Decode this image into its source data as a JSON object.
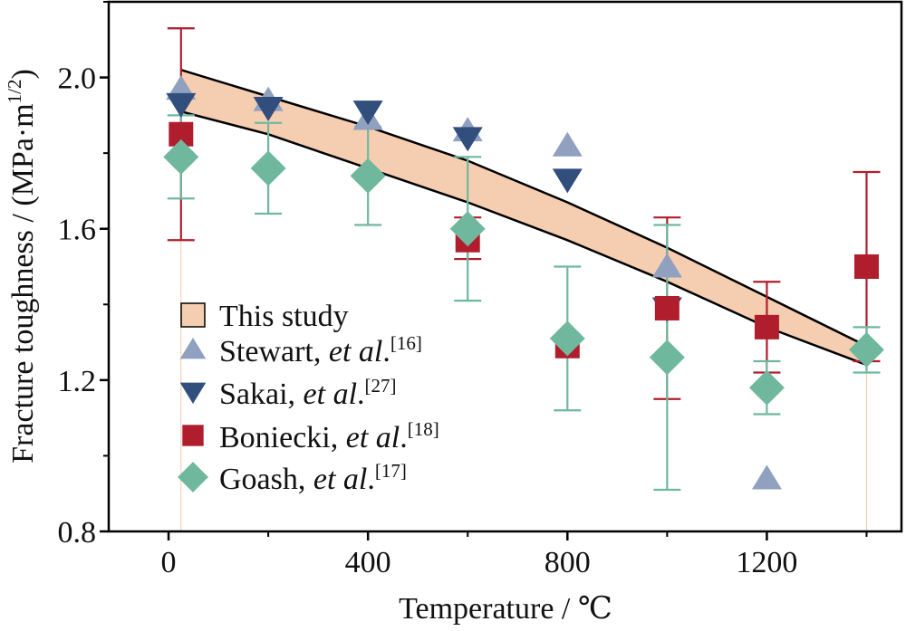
{
  "chart_data": {
    "type": "scatter",
    "xlabel": "Temperature / ℃",
    "ylabel_main": "Fracture toughness / (MPa·m",
    "ylabel_sup": "1/2",
    "ylabel_close": ")",
    "xlim": [
      -120,
      1470
    ],
    "ylim": [
      0.8,
      2.2
    ],
    "xticks": [
      0,
      400,
      800,
      1200
    ],
    "yticks": [
      0.8,
      1.2,
      1.6,
      2.0
    ],
    "xtick_labels": [
      "0",
      "400",
      "800",
      "1200"
    ],
    "ytick_labels": [
      "0.8",
      "1.2",
      "1.6",
      "2.0"
    ],
    "grid": false,
    "legend_position": "bottom-left",
    "band": {
      "label": "This study",
      "color": "#f5cdb0",
      "x": [
        25,
        200,
        400,
        600,
        800,
        1000,
        1200,
        1400
      ],
      "upper": [
        2.02,
        1.95,
        1.87,
        1.78,
        1.67,
        1.55,
        1.42,
        1.29
      ],
      "lower": [
        1.91,
        1.85,
        1.76,
        1.67,
        1.57,
        1.46,
        1.34,
        1.24
      ]
    },
    "series": [
      {
        "label_name": "Stewart, ",
        "label_italic": "et al",
        "label_dot": ".",
        "label_ref": "[16]",
        "marker": "triangle-up",
        "color": "#8fa1bf",
        "x": [
          25,
          200,
          400,
          600,
          800,
          1000,
          1200
        ],
        "y": [
          1.97,
          1.94,
          1.89,
          1.86,
          1.82,
          1.5,
          0.94
        ]
      },
      {
        "label_name": "Sakai, ",
        "label_italic": "et al",
        "label_dot": ".",
        "label_ref": "[27]",
        "marker": "triangle-down",
        "color": "#324e7d",
        "x": [
          25,
          200,
          400,
          600,
          800,
          1000
        ],
        "y": [
          1.93,
          1.92,
          1.91,
          1.84,
          1.73,
          1.39
        ]
      },
      {
        "label_name": "Boniecki, ",
        "label_italic": "et al",
        "label_dot": ".",
        "label_ref": "[18]",
        "marker": "square",
        "color": "#b01e2e",
        "x": [
          25,
          600,
          800,
          1000,
          1200,
          1400
        ],
        "y": [
          1.85,
          1.57,
          1.29,
          1.39,
          1.34,
          1.5
        ],
        "err_low": [
          1.57,
          1.52,
          null,
          1.15,
          1.22,
          1.25
        ],
        "err_high": [
          2.13,
          1.63,
          null,
          1.63,
          1.46,
          1.75
        ]
      },
      {
        "label_name": "Goash, ",
        "label_italic": "et al",
        "label_dot": ".",
        "label_ref": "[17]",
        "marker": "diamond",
        "color": "#6fb89e",
        "x": [
          25,
          200,
          400,
          600,
          800,
          1000,
          1200,
          1400
        ],
        "y": [
          1.79,
          1.76,
          1.74,
          1.6,
          1.31,
          1.26,
          1.18,
          1.28
        ],
        "err_low": [
          1.68,
          1.64,
          1.61,
          1.41,
          1.12,
          0.91,
          1.11,
          1.22
        ],
        "err_high": [
          1.9,
          1.88,
          1.87,
          1.79,
          1.5,
          1.61,
          1.25,
          1.34
        ]
      }
    ]
  }
}
